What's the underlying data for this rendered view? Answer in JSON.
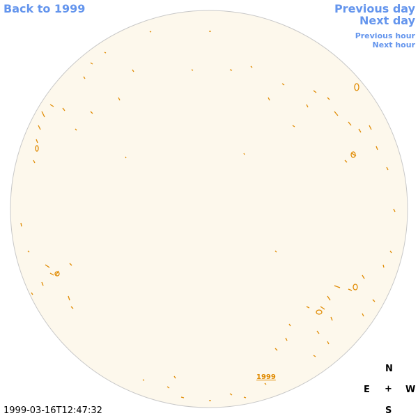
{
  "links": {
    "back": "Back to 1999",
    "previous_day": "Previous day",
    "next_day": "Next day",
    "previous_hour": "Previous hour",
    "next_hour": "Next hour",
    "year": "1999"
  },
  "timestamp": "1999-03-16T12:47:32",
  "compass": {
    "north": "N",
    "east": "E",
    "center": "+",
    "west": "W",
    "south": "S"
  }
}
